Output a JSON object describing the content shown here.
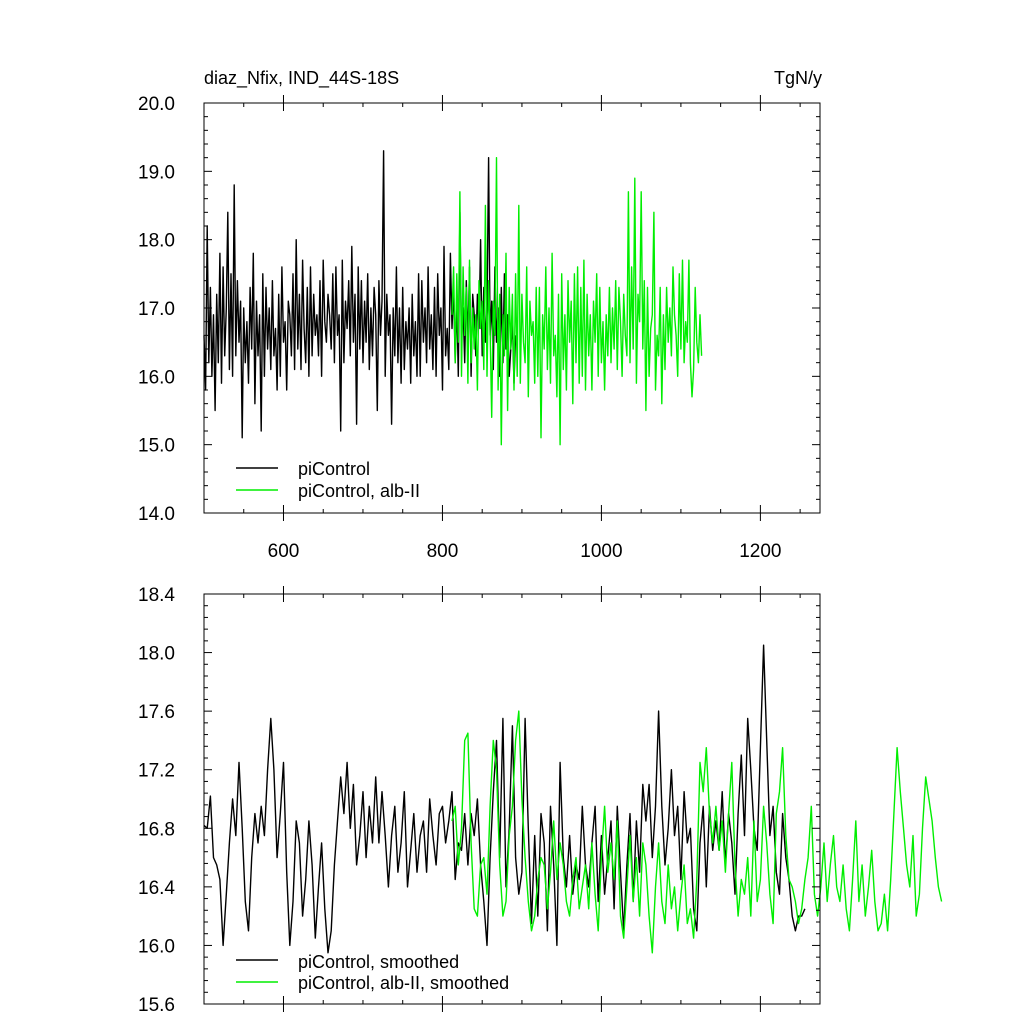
{
  "chart_data": [
    {
      "type": "line",
      "title_left": "diaz_Nfix, IND_44S-18S",
      "title_right": "TgN/y",
      "xlim": [
        500,
        1275
      ],
      "ylim": [
        14.0,
        20.0
      ],
      "x_ticks": [
        600,
        800,
        1000,
        1200
      ],
      "x_tick_labels": [
        "600",
        "800",
        "1000",
        "1200"
      ],
      "y_ticks": [
        14.0,
        15.0,
        16.0,
        17.0,
        18.0,
        19.0,
        20.0
      ],
      "y_tick_labels": [
        "14.0",
        "15.0",
        "16.0",
        "17.0",
        "18.0",
        "19.0",
        "20.0"
      ],
      "legend_position": "bottom-left",
      "series": [
        {
          "name": "piControl",
          "color": "#000000",
          "x_start": 500,
          "x_step": 2,
          "values": [
            16.6,
            15.8,
            18.2,
            16.2,
            17.3,
            16.0,
            16.9,
            15.5,
            17.2,
            16.2,
            17.8,
            15.9,
            17.6,
            16.3,
            17.0,
            18.4,
            16.1,
            17.5,
            16.0,
            18.8,
            16.3,
            17.4,
            16.5,
            17.1,
            15.1,
            17.0,
            16.2,
            16.8,
            15.9,
            17.3,
            16.4,
            17.8,
            15.6,
            17.1,
            16.3,
            16.9,
            15.2,
            17.5,
            16.0,
            17.3,
            16.4,
            17.0,
            16.1,
            17.4,
            16.3,
            16.7,
            15.8,
            17.2,
            16.0,
            17.6,
            16.5,
            16.8,
            15.8,
            17.1,
            16.9,
            16.3,
            17.5,
            16.1,
            18.0,
            16.4,
            17.2,
            16.1,
            17.7,
            16.7,
            16.2,
            17.3,
            16.0,
            17.6,
            16.3,
            17.2,
            16.6,
            16.9,
            16.3,
            17.4,
            16.0,
            17.7,
            16.8,
            16.5,
            17.2,
            16.9,
            16.4,
            17.5,
            16.2,
            17.6,
            16.6,
            16.9,
            15.2,
            17.7,
            16.2,
            17.1,
            16.7,
            17.4,
            16.3,
            17.9,
            16.5,
            17.2,
            15.3,
            17.6,
            16.4,
            17.4,
            16.2,
            17.1,
            16.5,
            17.5,
            16.1,
            17.0,
            16.3,
            17.3,
            16.9,
            15.5,
            17.4,
            16.6,
            17.1,
            19.3,
            16.0,
            17.2,
            16.6,
            16.9,
            15.3,
            17.0,
            16.3,
            17.6,
            16.2,
            17.0,
            15.9,
            17.3,
            16.1,
            16.8,
            16.4,
            17.0,
            15.9,
            17.2,
            16.3,
            16.8,
            16.0,
            17.5,
            16.0,
            17.4,
            16.5,
            17.0,
            16.2,
            17.6,
            16.4,
            16.9,
            16.1,
            17.3,
            16.0,
            17.5,
            16.6,
            17.0,
            15.8,
            17.9,
            16.3,
            16.7,
            16.1,
            17.8,
            16.7,
            17.3,
            16.2,
            17.1,
            16.0,
            18.4,
            16.5,
            17.0,
            16.2,
            17.4,
            16.5,
            17.6,
            16.0,
            17.2,
            16.9,
            16.3,
            17.2,
            16.7,
            18.0,
            16.3,
            17.3,
            16.5,
            17.0,
            19.2,
            16.6,
            17.1,
            16.1,
            17.6,
            16.5,
            17.0,
            16.0,
            17.3,
            16.2,
            17.5,
            16.4,
            16.9,
            16.0,
            16.4,
            16.8,
            15.9,
            16.6
          ]
        },
        {
          "name": "piControl, alb-II",
          "color": "#00ee00",
          "x_start": 812,
          "x_step": 2,
          "values": [
            16.9,
            17.6,
            16.2,
            17.5,
            16.5,
            18.7,
            16.0,
            17.6,
            16.6,
            17.3,
            15.9,
            17.7,
            16.2,
            17.0,
            16.4,
            16.9,
            15.8,
            17.4,
            16.7,
            17.1,
            16.1,
            18.5,
            16.0,
            17.4,
            16.7,
            15.4,
            17.1,
            16.6,
            19.2,
            15.8,
            17.2,
            15.0,
            16.9,
            16.3,
            17.8,
            15.5,
            17.3,
            16.4,
            17.2,
            15.8,
            17.5,
            16.0,
            18.5,
            15.9,
            17.2,
            16.5,
            16.2,
            17.6,
            15.7,
            17.1,
            16.6,
            16.8,
            15.9,
            17.3,
            16.0,
            17.3,
            15.1,
            16.9,
            16.4,
            17.6,
            16.1,
            17.0,
            15.9,
            17.8,
            16.3,
            16.6,
            15.7,
            17.2,
            15.0,
            17.5,
            16.1,
            16.9,
            15.8,
            17.4,
            16.5,
            17.1,
            15.6,
            17.5,
            16.2,
            17.6,
            15.9,
            17.3,
            16.0,
            17.7,
            15.8,
            17.2,
            16.3,
            16.9,
            15.8,
            17.1,
            16.5,
            17.5,
            16.0,
            17.3,
            16.2,
            16.8,
            15.8,
            16.9,
            16.3,
            17.3,
            16.2,
            17.0,
            16.4,
            17.4,
            16.1,
            17.3,
            16.8,
            16.0,
            17.2,
            16.6,
            16.3,
            18.7,
            16.2,
            17.6,
            16.4,
            18.9,
            15.9,
            17.2,
            16.8,
            18.7,
            16.4,
            17.4,
            15.5,
            17.3,
            16.0,
            16.7,
            16.9,
            18.4,
            15.8,
            16.6,
            16.3,
            17.3,
            15.6,
            16.9,
            16.1,
            17.3,
            16.5,
            17.0,
            16.3,
            17.6,
            16.9,
            16.6,
            16.0,
            17.5,
            16.4,
            17.7,
            16.2,
            16.8,
            16.5,
            17.7,
            16.2,
            15.7,
            16.1,
            17.3,
            16.5,
            16.2,
            16.9,
            16.3
          ]
        }
      ]
    },
    {
      "type": "line",
      "xlim": [
        500,
        1275
      ],
      "ylim": [
        15.6,
        18.4
      ],
      "x_ticks": [
        600,
        800,
        1000,
        1200
      ],
      "y_ticks": [
        15.6,
        16.0,
        16.4,
        16.8,
        17.2,
        17.6,
        18.0,
        18.4
      ],
      "y_tick_labels": [
        "15.6",
        "16.0",
        "16.4",
        "16.8",
        "17.2",
        "17.6",
        "18.0",
        "18.4"
      ],
      "legend_position": "bottom-left",
      "series": [
        {
          "name": "piControl, smoothed",
          "color": "#000000",
          "x_start": 500,
          "x_step": 4,
          "values": [
            16.82,
            16.8,
            17.02,
            16.6,
            16.55,
            16.45,
            16.0,
            16.35,
            16.7,
            17.0,
            16.75,
            17.25,
            16.8,
            16.3,
            16.1,
            16.6,
            16.9,
            16.7,
            16.95,
            16.75,
            17.2,
            17.55,
            17.2,
            16.6,
            16.9,
            17.25,
            16.5,
            16.0,
            16.3,
            16.85,
            16.7,
            16.2,
            16.45,
            16.85,
            16.55,
            16.05,
            16.4,
            16.7,
            16.25,
            15.95,
            16.1,
            16.55,
            16.85,
            17.15,
            16.9,
            17.25,
            16.8,
            17.1,
            16.55,
            16.75,
            17.05,
            16.6,
            16.95,
            16.7,
            17.15,
            16.7,
            17.05,
            16.75,
            16.4,
            16.75,
            16.95,
            16.5,
            16.7,
            17.05,
            16.4,
            16.65,
            16.9,
            16.5,
            16.75,
            16.85,
            16.5,
            17.0,
            16.75,
            16.55,
            16.9,
            16.95,
            16.7,
            16.85,
            17.05,
            16.45,
            16.7,
            16.65,
            16.9,
            16.55,
            16.9,
            16.75,
            17.0,
            16.55,
            16.3,
            16.0,
            16.6,
            17.05,
            17.4,
            16.6,
            17.55,
            16.4,
            16.8,
            17.5,
            16.6,
            16.35,
            16.5,
            17.55,
            16.8,
            16.15,
            16.75,
            16.2,
            16.9,
            16.7,
            16.1,
            16.95,
            16.55,
            16.0,
            17.25,
            16.6,
            16.4,
            16.75,
            16.35,
            16.55,
            16.45,
            16.95,
            16.55,
            16.4,
            16.7,
            16.95,
            16.3,
            16.75,
            16.35,
            16.6,
            16.85,
            16.25,
            16.95,
            16.5,
            16.1,
            16.55,
            16.9,
            16.3,
            16.85,
            16.5,
            17.1,
            16.85,
            17.1,
            16.6,
            16.95,
            17.6,
            16.95,
            16.55,
            16.8,
            17.2,
            16.75,
            16.95,
            16.45,
            17.05,
            16.7,
            16.8,
            16.25,
            16.1,
            16.7,
            16.95,
            16.4,
            16.95,
            16.65,
            16.85,
            16.65,
            17.05,
            16.55,
            16.9,
            16.7,
            16.35,
            16.9,
            17.3,
            16.75,
            17.55,
            17.2,
            16.8,
            16.65,
            17.35,
            18.05,
            17.4,
            16.75,
            16.95,
            16.5,
            16.35,
            16.9,
            16.6,
            16.45,
            16.2,
            16.1,
            16.2,
            16.2,
            16.25
          ]
        },
        {
          "name": "piControl, alb-II, smoothed",
          "color": "#00ee00",
          "x_start": 812,
          "x_step": 4,
          "values": [
            16.85,
            16.95,
            16.55,
            16.8,
            17.4,
            17.45,
            16.7,
            16.25,
            16.2,
            16.55,
            16.6,
            16.35,
            16.95,
            17.4,
            17.2,
            16.55,
            16.2,
            16.3,
            16.75,
            16.95,
            17.4,
            17.6,
            17.0,
            16.6,
            16.3,
            16.1,
            16.2,
            16.45,
            16.6,
            16.55,
            16.25,
            16.5,
            16.85,
            16.45,
            16.7,
            16.55,
            16.3,
            16.2,
            16.45,
            16.6,
            16.25,
            16.4,
            16.55,
            16.25,
            16.7,
            16.35,
            16.1,
            16.6,
            16.95,
            16.5,
            16.7,
            16.45,
            16.85,
            16.2,
            16.05,
            16.4,
            16.75,
            16.3,
            16.6,
            16.2,
            16.7,
            16.55,
            16.2,
            15.95,
            16.4,
            16.7,
            16.3,
            16.15,
            16.55,
            16.25,
            16.4,
            16.1,
            16.35,
            16.55,
            16.15,
            16.25,
            16.05,
            16.45,
            17.25,
            17.05,
            17.35,
            16.9,
            16.7,
            16.95,
            16.65,
            16.85,
            16.5,
            16.9,
            17.25,
            16.55,
            16.2,
            16.45,
            16.35,
            16.6,
            16.2,
            16.85,
            16.3,
            16.45,
            16.95,
            16.7,
            16.35,
            16.15,
            16.9,
            17.05,
            17.35,
            16.75,
            16.45,
            16.4,
            16.3,
            16.15,
            16.25,
            16.45,
            16.6,
            16.95,
            16.35,
            16.2,
            16.4,
            16.7,
            16.3,
            16.55,
            16.75,
            16.4,
            16.3,
            16.55,
            16.25,
            16.1,
            16.45,
            16.85,
            16.3,
            16.55,
            16.2,
            16.4,
            16.65,
            16.3,
            16.1,
            16.15,
            16.35,
            16.1,
            16.45,
            16.9,
            17.35,
            17.05,
            16.8,
            16.55,
            16.4,
            16.75,
            16.2,
            16.35,
            16.8,
            17.15,
            17.0,
            16.85,
            16.6,
            16.4,
            16.3
          ]
        }
      ]
    }
  ]
}
